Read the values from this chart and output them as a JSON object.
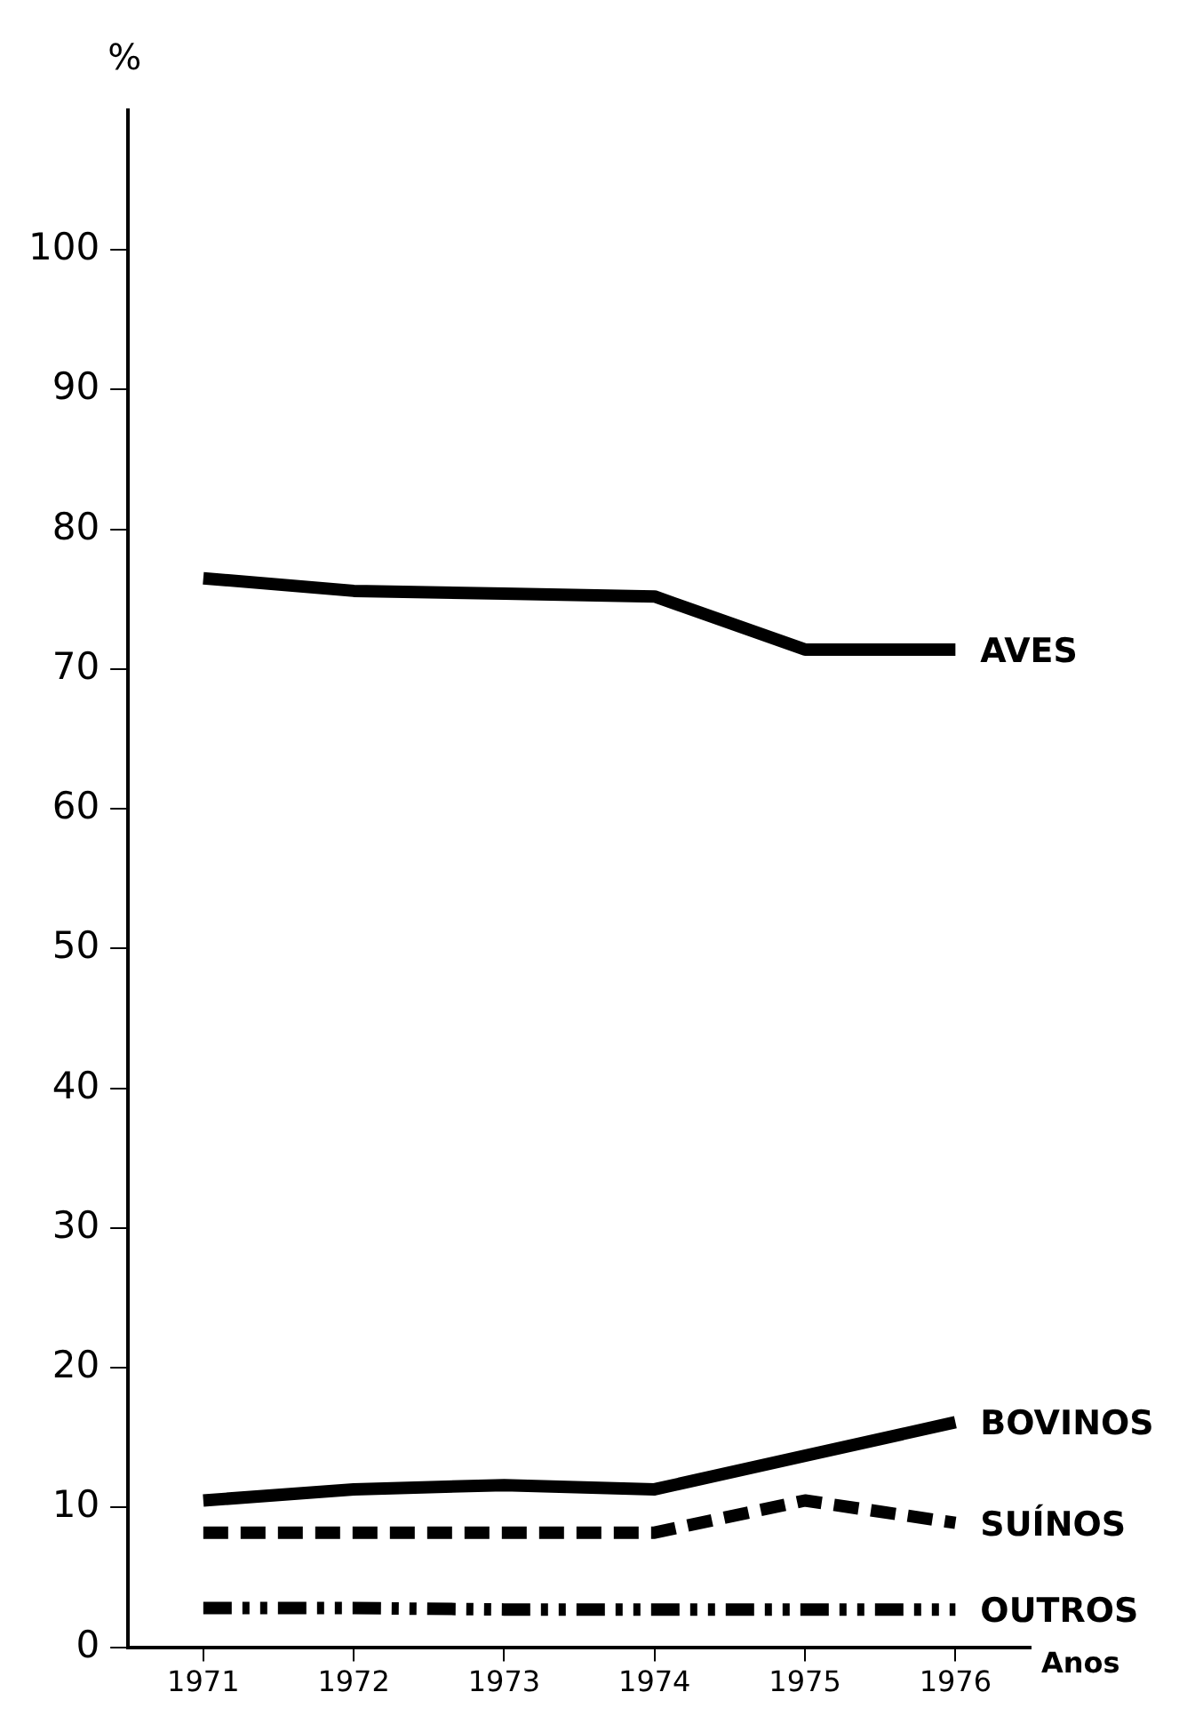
{
  "chart_data": {
    "type": "line",
    "xlabel": "Anos",
    "ylabel": "%",
    "categories": [
      "1971",
      "1972",
      "1973",
      "1974",
      "1975",
      "1976"
    ],
    "series": [
      {
        "name": "AVES",
        "color": "#000000",
        "line_style": "solid",
        "values": [
          76.5,
          75.6,
          75.4,
          75.2,
          71.4,
          71.4
        ]
      },
      {
        "name": "BOVINOS",
        "color": "#000000",
        "line_style": "solid",
        "values": [
          10.5,
          11.3,
          11.6,
          11.3,
          13.7,
          16.1
        ]
      },
      {
        "name": "SUÍNOS",
        "color": "#000000",
        "line_style": "dashed",
        "values": [
          8.2,
          8.2,
          8.2,
          8.2,
          10.5,
          8.9
        ]
      },
      {
        "name": "OUTROS",
        "color": "#000000",
        "line_style": "dotted",
        "values": [
          2.8,
          2.8,
          2.7,
          2.7,
          2.7,
          2.7
        ]
      }
    ],
    "ylim": [
      0,
      110
    ],
    "yticks": [
      0,
      10,
      20,
      30,
      40,
      50,
      60,
      70,
      80,
      90,
      100
    ],
    "grid": false,
    "legend": false,
    "marker": "none"
  }
}
